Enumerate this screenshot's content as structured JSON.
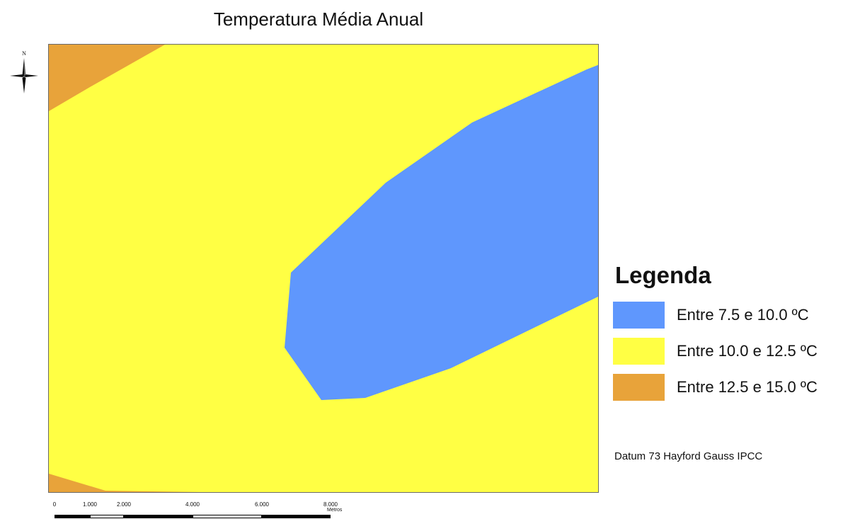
{
  "title": "Temperatura Média Anual",
  "north_arrow": {
    "label": "N",
    "icon": "north-arrow-icon"
  },
  "map": {
    "zones": [
      {
        "id": "warm",
        "range": "Entre 12.5 e 15.0 ºC",
        "color": "#e8a33a"
      },
      {
        "id": "mild",
        "range": "Entre 10.0 e 12.5 ºC",
        "color": "#ffff44"
      },
      {
        "id": "cool",
        "range": "Entre 7.5 e 10.0 ºC",
        "color": "#5f97fd"
      }
    ],
    "border_color": "#6a6a6a"
  },
  "legend": {
    "title": "Legenda",
    "items": [
      {
        "label": "Entre 7.5 e 10.0 ºC",
        "color": "#5f97fd"
      },
      {
        "label": "Entre 10.0 e 12.5 ºC",
        "color": "#ffff44"
      },
      {
        "label": "Entre 12.5 e 15.0 ºC",
        "color": "#e8a33a"
      }
    ]
  },
  "datum": "Datum 73 Hayford Gauss IPCC",
  "scale_bar": {
    "ticks": [
      "0",
      "1.000",
      "2.000",
      "4.000",
      "6.000",
      "8.000"
    ],
    "unit": "Metros"
  }
}
